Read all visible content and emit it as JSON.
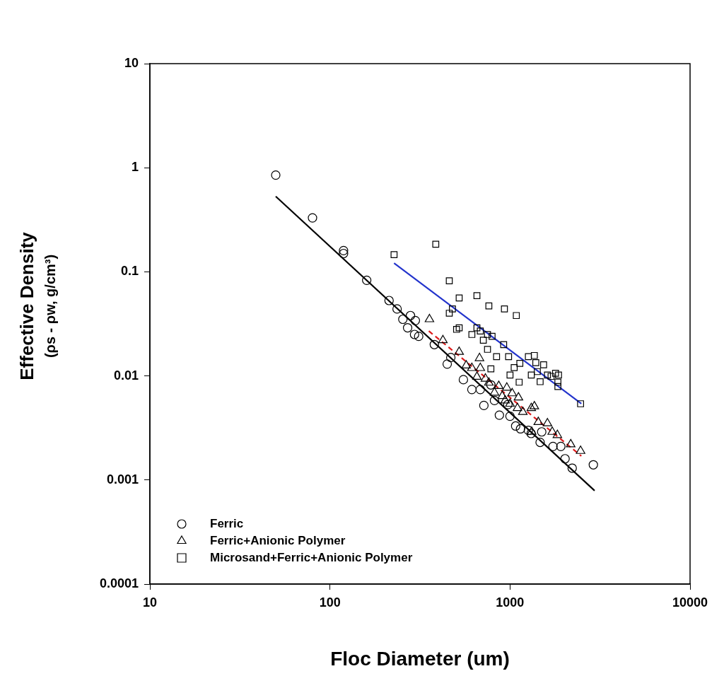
{
  "chart_data": {
    "type": "scatter",
    "xlabel": "Floc Diameter (um)",
    "ylabel": [
      "Effective Density",
      "(ρs - ρw, g/cm³)"
    ],
    "log": true,
    "grid": false,
    "legend": "lower left",
    "xlim": [
      10,
      10000
    ],
    "xticks": [
      10,
      100,
      1000,
      10000
    ],
    "ylim": [
      0.0001,
      10
    ],
    "yticks": [
      0.0001,
      0.001,
      0.01,
      0.1,
      1,
      10
    ],
    "series": [
      {
        "name": "Ferric",
        "color": "#000000",
        "marker": "circle",
        "x": [
          50,
          80,
          119,
          119,
          160,
          213,
          236,
          254,
          280,
          270,
          298,
          295,
          311,
          380,
          448,
          469,
          551,
          614,
          684,
          716,
          783,
          820,
          873,
          973,
          1000,
          1075,
          1144,
          1265,
          1310,
          1500,
          1470,
          1733,
          1915,
          2022,
          2215,
          2903
        ],
        "values": [
          0.85,
          0.33,
          0.16,
          0.15,
          0.083,
          0.053,
          0.044,
          0.035,
          0.038,
          0.029,
          0.034,
          0.025,
          0.024,
          0.02,
          0.013,
          0.015,
          0.0092,
          0.0074,
          0.0074,
          0.0052,
          0.0082,
          0.0058,
          0.0042,
          0.0053,
          0.0041,
          0.0033,
          0.0031,
          0.003,
          0.0028,
          0.0029,
          0.0023,
          0.0021,
          0.0021,
          0.0016,
          0.0013,
          0.0014
        ]
      },
      {
        "name": "Ferric+Anionic Polymer",
        "color": "#000000",
        "marker": "triangle",
        "x": [
          357,
          424,
          522,
          571,
          614,
          655,
          684,
          730,
          677,
          763,
          820,
          866,
          905,
          940,
          1000,
          1028,
          1114,
          1100,
          1178,
          1313,
          1365,
          1435,
          1614,
          1320,
          1716,
          1833,
          2174,
          2466,
          960
        ],
        "values": [
          0.035,
          0.022,
          0.017,
          0.0126,
          0.0119,
          0.0098,
          0.0119,
          0.0094,
          0.0148,
          0.0086,
          0.0069,
          0.008,
          0.0064,
          0.0058,
          0.0054,
          0.0068,
          0.0062,
          0.0049,
          0.0045,
          0.0049,
          0.0051,
          0.0036,
          0.0035,
          0.0029,
          0.0029,
          0.0027,
          0.0022,
          0.0019,
          0.0077
        ]
      },
      {
        "name": "Microsand+Ferric+Anionic Polymer",
        "color": "#000000",
        "marker": "square",
        "x": [
          227,
          387,
          460,
          460,
          479,
          522,
          522,
          505,
          655,
          763,
          931,
          1084,
          614,
          655,
          684,
          711,
          750,
          795,
          750,
          783,
          842,
          982,
          1000,
          1134,
          1124,
          1265,
          1313,
          1365,
          1391,
          1418,
          1470,
          1537,
          1614,
          1690,
          1790,
          1845,
          1860,
          1845,
          2466,
          922,
          1055
        ],
        "values": [
          0.146,
          0.184,
          0.082,
          0.04,
          0.044,
          0.056,
          0.029,
          0.028,
          0.059,
          0.047,
          0.044,
          0.038,
          0.025,
          0.029,
          0.027,
          0.022,
          0.025,
          0.024,
          0.018,
          0.0117,
          0.0153,
          0.0153,
          0.0102,
          0.0132,
          0.0087,
          0.0153,
          0.0102,
          0.0157,
          0.0134,
          0.011,
          0.0088,
          0.0128,
          0.0102,
          0.0099,
          0.0106,
          0.0087,
          0.0102,
          0.0079,
          0.0054,
          0.02,
          0.012
        ]
      },
      {
        "type": "line",
        "color": "#000000",
        "line_style": "solid",
        "x": [
          50,
          2950
        ],
        "values": [
          0.53,
          0.00079
        ]
      },
      {
        "type": "line",
        "color": "#dd1c1c",
        "line_style": "dashed",
        "x": [
          354,
          2490
        ],
        "values": [
          0.027,
          0.0017
        ]
      },
      {
        "type": "line",
        "color": "#2233cc",
        "line_style": "solid",
        "x": [
          227,
          2490
        ],
        "values": [
          0.121,
          0.0054
        ]
      }
    ]
  }
}
